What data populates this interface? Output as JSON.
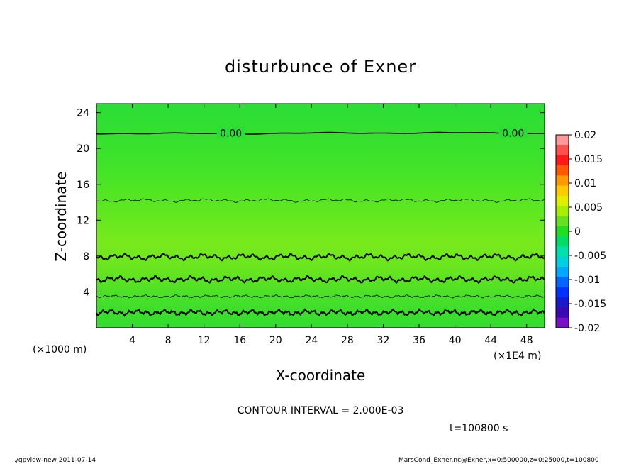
{
  "chart_data": {
    "type": "contour",
    "title": "disturbunce of Exner",
    "xlabel": "X-coordinate",
    "ylabel": "Z-coordinate",
    "x_unit": "(×1E4 m)",
    "y_unit": "(×1000 m)",
    "xlim": [
      0,
      50
    ],
    "ylim": [
      0,
      25
    ],
    "xticks": [
      4,
      8,
      12,
      16,
      20,
      24,
      28,
      32,
      36,
      40,
      44,
      48
    ],
    "yticks": [
      4,
      8,
      12,
      16,
      20,
      24
    ],
    "contour_interval": "CONTOUR INTERVAL = 2.000E-03",
    "time_label": "t=100800 s",
    "contour_labels": [
      "0.00",
      "0.00"
    ],
    "colorbar": {
      "ticks": [
        "0.02",
        "0.015",
        "0.01",
        "0.005",
        "0",
        "-0.005",
        "-0.01",
        "-0.015",
        "-0.02"
      ],
      "colors": [
        "#ff9999",
        "#ff5050",
        "#ff1a1a",
        "#ff5a00",
        "#ff9900",
        "#ffcc00",
        "#e0ee00",
        "#a8ee00",
        "#66e020",
        "#22dd22",
        "#00dd66",
        "#00e0aa",
        "#00d0e0",
        "#00a8ff",
        "#0066ff",
        "#0033ff",
        "#1a1acc",
        "#3a0ab0",
        "#7a10c8"
      ]
    }
  },
  "footer": {
    "left": "./gpview-new   2011-07-14",
    "right": "MarsCond_Exner.nc@Exner,x=0:500000,z=0:25000,t=100800"
  }
}
